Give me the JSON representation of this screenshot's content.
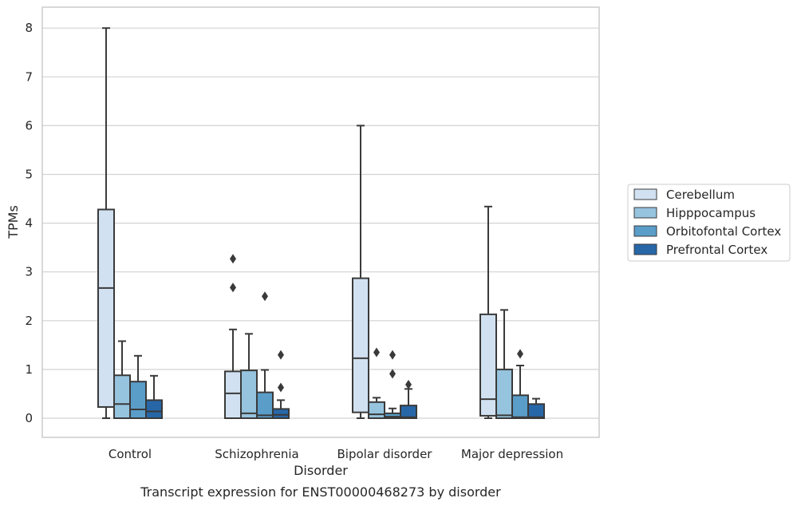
{
  "chart_data": {
    "type": "box",
    "title": "Transcript expression for ENST00000468273 by disorder",
    "xlabel": "Disorder",
    "ylabel": "TPMs",
    "ylim": [
      -0.4,
      8.4
    ],
    "yticks": [
      0,
      1,
      2,
      3,
      4,
      5,
      6,
      7,
      8
    ],
    "categories": [
      "Control",
      "Schizophrenia",
      "Bipolar disorder",
      "Major depression"
    ],
    "grid": true,
    "legend_position": "right",
    "series": [
      {
        "name": "Cerebellum",
        "color": "#d1e1f1",
        "boxes": [
          {
            "whislo": 0.0,
            "q1": 0.23,
            "med": 2.67,
            "q3": 4.28,
            "whishi": 8.0,
            "fliers": []
          },
          {
            "whislo": 0.0,
            "q1": 0.0,
            "med": 0.51,
            "q3": 0.96,
            "whishi": 1.82,
            "fliers": [
              2.68,
              3.27
            ]
          },
          {
            "whislo": 0.0,
            "q1": 0.12,
            "med": 1.23,
            "q3": 2.87,
            "whishi": 6.0,
            "fliers": []
          },
          {
            "whislo": 0.0,
            "q1": 0.05,
            "med": 0.39,
            "q3": 2.13,
            "whishi": 4.34,
            "fliers": []
          }
        ]
      },
      {
        "name": "Hipppocampus",
        "color": "#96c3dd",
        "boxes": [
          {
            "whislo": 0.0,
            "q1": 0.0,
            "med": 0.29,
            "q3": 0.88,
            "whishi": 1.58,
            "fliers": []
          },
          {
            "whislo": 0.0,
            "q1": 0.0,
            "med": 0.1,
            "q3": 0.98,
            "whishi": 1.73,
            "fliers": []
          },
          {
            "whislo": 0.0,
            "q1": 0.0,
            "med": 0.08,
            "q3": 0.33,
            "whishi": 0.42,
            "fliers": [
              1.35
            ]
          },
          {
            "whislo": 0.0,
            "q1": 0.0,
            "med": 0.06,
            "q3": 1.0,
            "whishi": 2.22,
            "fliers": []
          }
        ]
      },
      {
        "name": "Orbitofontal Cortex",
        "color": "#5a9dc9",
        "boxes": [
          {
            "whislo": 0.0,
            "q1": 0.0,
            "med": 0.18,
            "q3": 0.75,
            "whishi": 1.28,
            "fliers": []
          },
          {
            "whislo": 0.0,
            "q1": 0.0,
            "med": 0.06,
            "q3": 0.53,
            "whishi": 0.99,
            "fliers": [
              2.5
            ]
          },
          {
            "whislo": 0.0,
            "q1": 0.0,
            "med": 0.03,
            "q3": 0.1,
            "whishi": 0.2,
            "fliers": [
              0.91,
              1.3
            ]
          },
          {
            "whislo": 0.0,
            "q1": 0.0,
            "med": 0.02,
            "q3": 0.47,
            "whishi": 1.08,
            "fliers": [
              1.32
            ]
          }
        ]
      },
      {
        "name": "Prefrontal Cortex",
        "color": "#2767a8",
        "boxes": [
          {
            "whislo": 0.0,
            "q1": 0.0,
            "med": 0.14,
            "q3": 0.37,
            "whishi": 0.87,
            "fliers": []
          },
          {
            "whislo": 0.0,
            "q1": 0.0,
            "med": 0.07,
            "q3": 0.19,
            "whishi": 0.37,
            "fliers": [
              0.63,
              1.3
            ]
          },
          {
            "whislo": 0.0,
            "q1": 0.0,
            "med": 0.02,
            "q3": 0.26,
            "whishi": 0.6,
            "fliers": [
              0.69
            ]
          },
          {
            "whislo": 0.0,
            "q1": 0.0,
            "med": 0.02,
            "q3": 0.29,
            "whishi": 0.4,
            "fliers": []
          }
        ]
      }
    ]
  }
}
